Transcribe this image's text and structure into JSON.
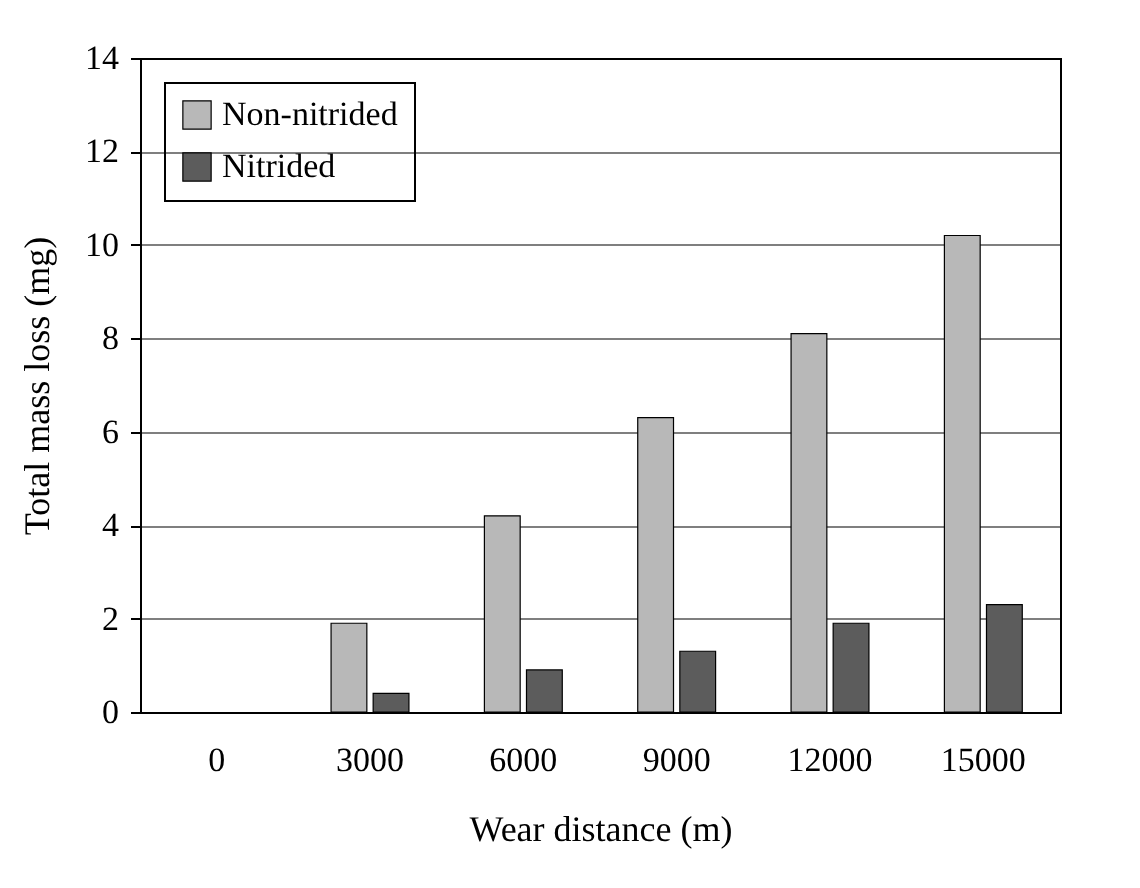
{
  "chart_data": {
    "type": "bar",
    "xlabel": "Wear distance (m)",
    "ylabel": "Total mass loss (mg)",
    "categories": [
      "0",
      "3000",
      "6000",
      "9000",
      "12000",
      "15000"
    ],
    "series": [
      {
        "name": "Non-nitrided",
        "color": "#b8b8b8",
        "values": [
          0,
          1.9,
          4.2,
          6.3,
          8.1,
          10.2
        ]
      },
      {
        "name": "Nitrided",
        "color": "#5c5c5c",
        "values": [
          0,
          0.4,
          0.9,
          1.3,
          1.9,
          2.3
        ]
      }
    ],
    "ylim": [
      0,
      14
    ],
    "yticks": [
      0,
      2,
      4,
      6,
      8,
      10,
      12,
      14
    ],
    "grid": "y",
    "legend": "top left"
  }
}
